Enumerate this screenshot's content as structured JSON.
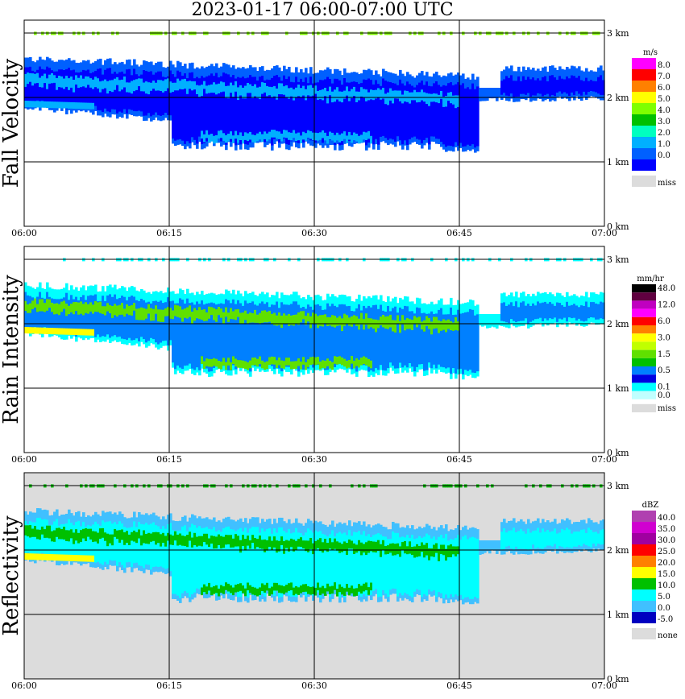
{
  "title": "2023-01-17   06:00-07:00 UTC",
  "chart_data": [
    {
      "type": "heatmap",
      "title": "Fall Velocity",
      "x_ticks": [
        "06:00",
        "06:15",
        "06:30",
        "06:45",
        "07:00"
      ],
      "y_ticks": [
        "0 km",
        "1 km",
        "2 km",
        "3 km"
      ],
      "ylim": [
        0,
        3.2
      ],
      "legend_unit": "m/s",
      "legend": [
        {
          "label": "8.0",
          "color": "#ff00ff"
        },
        {
          "label": "7.0",
          "color": "#ff0000"
        },
        {
          "label": "6.0",
          "color": "#ff8000"
        },
        {
          "label": "5.0",
          "color": "#ffff00"
        },
        {
          "label": "4.0",
          "color": "#80ff00"
        },
        {
          "label": "3.0",
          "color": "#00c000"
        },
        {
          "label": "2.0",
          "color": "#00ffc0"
        },
        {
          "label": "1.0",
          "color": "#00b0ff"
        },
        {
          "label": "0.0",
          "color": "#0060ff"
        },
        {
          "label": "",
          "color": "#0000ff"
        },
        {
          "label": "miss",
          "color": "#dcdcdc"
        }
      ]
    },
    {
      "type": "heatmap",
      "title": "Rain Intensity",
      "x_ticks": [
        "06:00",
        "06:15",
        "06:30",
        "06:45",
        "07:00"
      ],
      "y_ticks": [
        "0 km",
        "1 km",
        "2 km",
        "3 km"
      ],
      "ylim": [
        0,
        3.2
      ],
      "legend_unit": "mm/hr",
      "legend": [
        {
          "label": "48.0",
          "color": "#000000"
        },
        {
          "label": "",
          "color": "#600040"
        },
        {
          "label": "12.0",
          "color": "#c000c0"
        },
        {
          "label": "",
          "color": "#ff00ff"
        },
        {
          "label": "6.0",
          "color": "#ff0000"
        },
        {
          "label": "",
          "color": "#ff8000"
        },
        {
          "label": "3.0",
          "color": "#ffff00"
        },
        {
          "label": "",
          "color": "#c0ff00"
        },
        {
          "label": "1.5",
          "color": "#60e000"
        },
        {
          "label": "",
          "color": "#00c000"
        },
        {
          "label": "0.5",
          "color": "#0080ff"
        },
        {
          "label": "",
          "color": "#0000e0"
        },
        {
          "label": "0.1",
          "color": "#00ffff"
        },
        {
          "label": "0.0",
          "color": "#c0ffff"
        },
        {
          "label": "miss",
          "color": "#dcdcdc"
        }
      ]
    },
    {
      "type": "heatmap",
      "title": "Reflectivity",
      "x_ticks": [
        "06:00",
        "06:15",
        "06:30",
        "06:45",
        "07:00"
      ],
      "y_ticks": [
        "0 km",
        "1 km",
        "2 km",
        "3 km"
      ],
      "ylim": [
        0,
        3.2
      ],
      "legend_unit": "dBZ",
      "legend": [
        {
          "label": "40.0",
          "color": "#b040b0"
        },
        {
          "label": "35.0",
          "color": "#d000d0"
        },
        {
          "label": "30.0",
          "color": "#a000a0"
        },
        {
          "label": "25.0",
          "color": "#ff0000"
        },
        {
          "label": "20.0",
          "color": "#ff8000"
        },
        {
          "label": "15.0",
          "color": "#ffff00"
        },
        {
          "label": "10.0",
          "color": "#00c000"
        },
        {
          "label": "5.0",
          "color": "#00ffff"
        },
        {
          "label": "0.0",
          "color": "#40c0ff"
        },
        {
          "label": "-5.0",
          "color": "#0000c0"
        },
        {
          "label": "none",
          "color": "#dcdcdc"
        }
      ]
    }
  ]
}
